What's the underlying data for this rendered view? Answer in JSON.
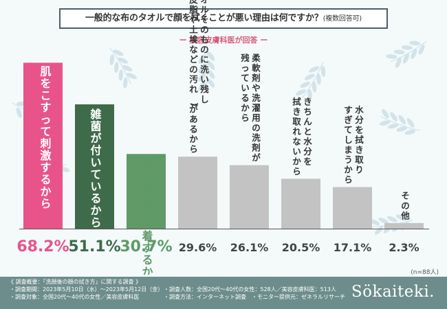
{
  "header": {
    "title_main": "一般的な布のタオルで顔を拭くことが悪い理由は何ですか？",
    "title_suffix": "(複数回答可)",
    "subtitle": "ー 美容皮膚科医が回答 ー"
  },
  "chart_data": {
    "type": "bar",
    "title": "一般的な布のタオルで顔を拭くことが悪い理由は何ですか？(複数回答可)",
    "categories": [
      "肌をこすって刺激するから",
      "雑菌が付いているから",
      "顔に繊維が付着するから",
      "タオルそのものに洗い残し(皮脂や土埃などの汚れ)があるから",
      "柔軟剤や洗濯用の洗剤が残っているから",
      "きちんと水分を拭き取れないから",
      "水分を拭き取りすぎてしまうから",
      "その他"
    ],
    "label_columns": [
      [
        "肌をこすって刺激するから"
      ],
      [
        "雑菌が付いているから"
      ],
      [
        "顔に繊維が付着するから"
      ],
      [
        "タオルそのものに洗い残し",
        "(皮脂や土埃などの汚れ)があるから"
      ],
      [
        "柔軟剤や洗濯用の洗剤が",
        "残っているから"
      ],
      [
        "きちんと水分を",
        "拭き取れないから"
      ],
      [
        "水分を拭き取り",
        "すぎてしまうから"
      ],
      [
        "その他"
      ]
    ],
    "values": [
      68.2,
      51.1,
      30.7,
      29.6,
      26.1,
      20.5,
      17.1,
      2.3
    ],
    "value_labels": [
      "68.2%",
      "51.1%",
      "30.7%",
      "29.6%",
      "26.1%",
      "20.5%",
      "17.1%",
      "2.3%"
    ],
    "unit": "%",
    "ylim": [
      0,
      70
    ],
    "colors": [
      "#e8548a",
      "#3e6b4a",
      "#5f9a67",
      "#c3c3c3",
      "#c3c3c3",
      "#c3c3c3",
      "#c3c3c3",
      "#c3c3c3"
    ],
    "value_colors": [
      "#e8548a",
      "#3e6b4a",
      "#5f9a67",
      "#444444",
      "#444444",
      "#444444",
      "#444444",
      "#444444"
    ],
    "label_colors": [
      "#ffffff",
      "#ffffff",
      "#5f9a67",
      "#333333",
      "#333333",
      "#333333",
      "#333333",
      "#333333"
    ]
  },
  "sample_note": "(n=88人)",
  "footer": {
    "line1": "《 調査概要：「洗顔後の顔の拭き方」に関する調査 》",
    "line2a": "・調査期間：2023年5月10日（水）〜2023年5月12日（金）",
    "line2b": "・調査人数：全国20代〜40代の女性：528人／美容皮膚科医：513人",
    "line3a": "・調査対象：全国20代〜40代の女性／美容皮膚科医",
    "line3b": "・調査方法：インターネット調査　・モニター提供元：ゼネラルリサーチ",
    "brand": "Sökaiteki."
  },
  "colors": {
    "background": "#f4f9fa",
    "leaf": "#a9c9d5",
    "footer_bg": "#6c8d8c"
  }
}
